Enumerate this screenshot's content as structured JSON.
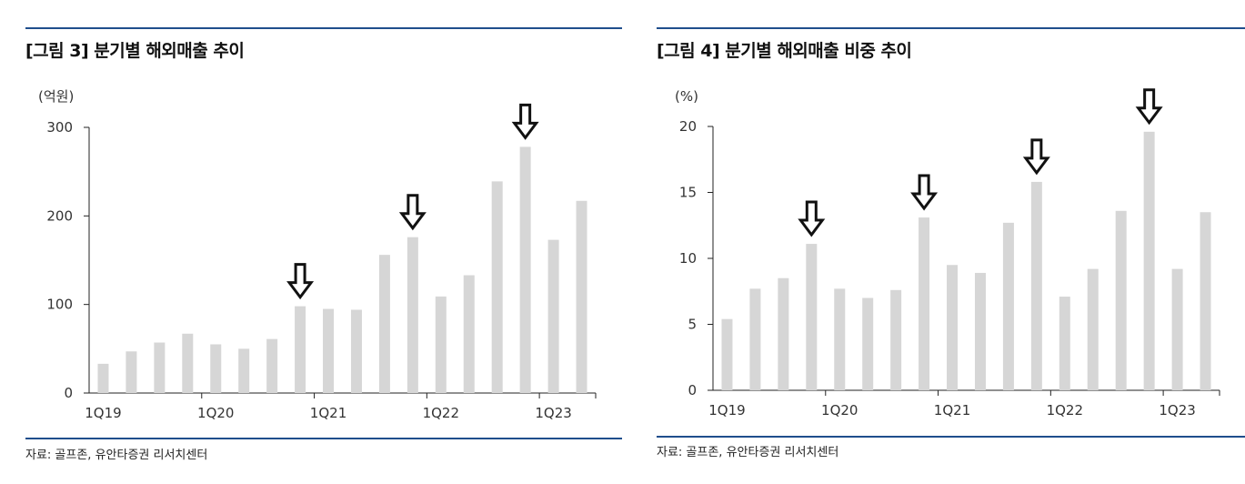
{
  "charts": [
    {
      "title": "[그림 3] 분기별 해외매출 추이",
      "source": "자료: 골프존, 유안타증권 리서치센터",
      "chart_data": {
        "type": "bar",
        "unit": "(억원)",
        "categories": [
          "1Q19",
          "2Q19",
          "3Q19",
          "4Q19",
          "1Q20",
          "2Q20",
          "3Q20",
          "4Q20",
          "1Q21",
          "2Q21",
          "3Q21",
          "4Q21",
          "1Q22",
          "2Q22",
          "3Q22",
          "4Q22",
          "1Q23",
          "2Q23"
        ],
        "x_tick_labels": [
          "1Q19",
          "1Q20",
          "1Q21",
          "1Q22",
          "1Q23"
        ],
        "values": [
          33,
          47,
          57,
          67,
          55,
          50,
          61,
          98,
          95,
          94,
          156,
          176,
          109,
          133,
          239,
          278,
          173,
          217
        ],
        "ylim": [
          0,
          300
        ],
        "yticks": [
          0,
          100,
          200,
          300
        ],
        "grid": false,
        "bar_color": "#d6d6d6",
        "annotations": [
          {
            "type": "down-arrow",
            "category": "4Q20"
          },
          {
            "type": "down-arrow",
            "category": "4Q21"
          },
          {
            "type": "down-arrow",
            "category": "4Q22"
          }
        ]
      }
    },
    {
      "title": "[그림 4] 분기별 해외매출 비중 추이",
      "source": "자료: 골프존, 유안타증권 리서치센터",
      "chart_data": {
        "type": "bar",
        "unit": "(%)",
        "categories": [
          "1Q19",
          "2Q19",
          "3Q19",
          "4Q19",
          "1Q20",
          "2Q20",
          "3Q20",
          "4Q20",
          "1Q21",
          "2Q21",
          "3Q21",
          "4Q21",
          "1Q22",
          "2Q22",
          "3Q22",
          "4Q22",
          "1Q23",
          "2Q23"
        ],
        "x_tick_labels": [
          "1Q19",
          "1Q20",
          "1Q21",
          "1Q22",
          "1Q23"
        ],
        "values": [
          5.4,
          7.7,
          8.5,
          11.1,
          7.7,
          7.0,
          7.6,
          13.1,
          9.5,
          8.9,
          12.7,
          15.8,
          7.1,
          9.2,
          13.6,
          19.6,
          9.2,
          13.5
        ],
        "ylim": [
          0,
          20
        ],
        "yticks": [
          0,
          5,
          10,
          15,
          20
        ],
        "grid": false,
        "bar_color": "#d6d6d6",
        "annotations": [
          {
            "type": "down-arrow",
            "category": "4Q19"
          },
          {
            "type": "down-arrow",
            "category": "4Q20"
          },
          {
            "type": "down-arrow",
            "category": "4Q21"
          },
          {
            "type": "down-arrow",
            "category": "4Q22"
          }
        ]
      }
    }
  ]
}
